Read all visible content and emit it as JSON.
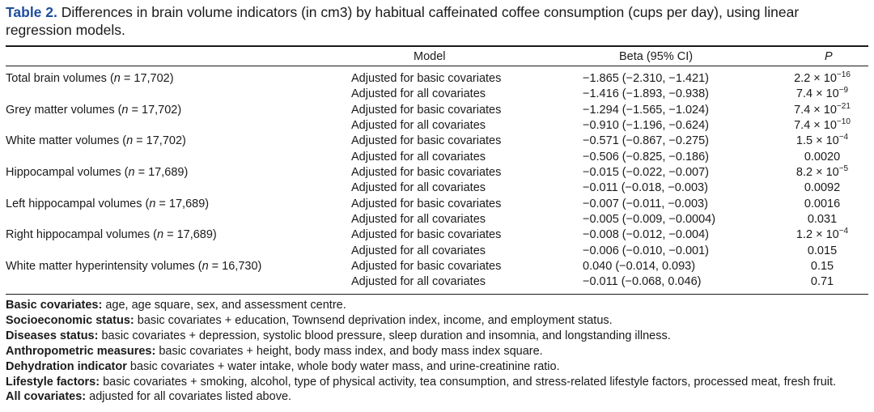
{
  "caption": {
    "label": "Table 2.",
    "text": " Differences in brain volume indicators (in cm3) by habitual caffeinated coffee consumption (cups per day), using linear regression models."
  },
  "headers": {
    "model": "Model",
    "beta": "Beta (95% CI)",
    "p": "P"
  },
  "rows": [
    {
      "outcome": "Total brain volumes (",
      "n": "n",
      "n_val": " = 17,702)",
      "model": "Adjusted for basic covariates",
      "beta": "−1.865 (−2.310, −1.421)",
      "p_base": "2.2 × 10",
      "p_exp": "−16"
    },
    {
      "outcome": "",
      "n": "",
      "n_val": "",
      "model": "Adjusted for all covariates",
      "beta": "−1.416 (−1.893, −0.938)",
      "p_base": "7.4 × 10",
      "p_exp": "−9"
    },
    {
      "outcome": "Grey matter volumes (",
      "n": "n",
      "n_val": " = 17,702)",
      "model": "Adjusted for basic covariates",
      "beta": "−1.294 (−1.565, −1.024)",
      "p_base": "7.4 × 10",
      "p_exp": "−21"
    },
    {
      "outcome": "",
      "n": "",
      "n_val": "",
      "model": "Adjusted for all covariates",
      "beta": "−0.910 (−1.196, −0.624)",
      "p_base": "7.4 × 10",
      "p_exp": "−10"
    },
    {
      "outcome": "White matter volumes (",
      "n": "n",
      "n_val": " = 17,702)",
      "model": "Adjusted for basic covariates",
      "beta": "−0.571 (−0.867, −0.275)",
      "p_base": "1.5 × 10",
      "p_exp": "−4"
    },
    {
      "outcome": "",
      "n": "",
      "n_val": "",
      "model": "Adjusted for all covariates",
      "beta": "−0.506 (−0.825, −0.186)",
      "p_base": "0.0020",
      "p_exp": ""
    },
    {
      "outcome": "Hippocampal volumes (",
      "n": "n",
      "n_val": " = 17,689)",
      "model": "Adjusted for basic covariates",
      "beta": "−0.015 (−0.022, −0.007)",
      "p_base": "8.2 × 10",
      "p_exp": "−5"
    },
    {
      "outcome": "",
      "n": "",
      "n_val": "",
      "model": "Adjusted for all covariates",
      "beta": "−0.011 (−0.018, −0.003)",
      "p_base": "0.0092",
      "p_exp": ""
    },
    {
      "outcome": "Left hippocampal volumes (",
      "n": "n",
      "n_val": " = 17,689)",
      "model": "Adjusted for basic covariates",
      "beta": "−0.007 (−0.011, −0.003)",
      "p_base": "0.0016",
      "p_exp": ""
    },
    {
      "outcome": "",
      "n": "",
      "n_val": "",
      "model": "Adjusted for all covariates",
      "beta": "−0.005 (−0.009, −0.0004)",
      "p_base": "0.031",
      "p_exp": ""
    },
    {
      "outcome": "Right hippocampal volumes (",
      "n": "n",
      "n_val": " = 17,689)",
      "model": "Adjusted for basic covariates",
      "beta": "−0.008 (−0.012, −0.004)",
      "p_base": "1.2 × 10",
      "p_exp": "−4"
    },
    {
      "outcome": "",
      "n": "",
      "n_val": "",
      "model": "Adjusted for all covariates",
      "beta": "−0.006 (−0.010, −0.001)",
      "p_base": "0.015",
      "p_exp": ""
    },
    {
      "outcome": "White matter hyperintensity volumes (",
      "n": "n",
      "n_val": " = 16,730)",
      "model": "Adjusted for basic covariates",
      "beta": "0.040 (−0.014, 0.093)",
      "p_base": "0.15",
      "p_exp": ""
    },
    {
      "outcome": "",
      "n": "",
      "n_val": "",
      "model": "Adjusted for all covariates",
      "beta": "−0.011 (−0.068, 0.046)",
      "p_base": "0.71",
      "p_exp": ""
    }
  ],
  "notes": [
    {
      "label": "Basic covariates:",
      "text": " age, age square, sex, and assessment centre."
    },
    {
      "label": "Socioeconomic status:",
      "text": " basic covariates + education, Townsend deprivation index, income, and employment status."
    },
    {
      "label": "Diseases status:",
      "text": " basic covariates + depression, systolic blood pressure, sleep duration and insomnia, and longstanding illness."
    },
    {
      "label": "Anthropometric measures:",
      "text": " basic covariates + height, body mass index, and body mass index square."
    },
    {
      "label": "Dehydration indicator",
      "text": " basic covariates + water intake, whole body water mass, and urine-creatinine ratio."
    },
    {
      "label": "Lifestyle factors:",
      "text": " basic covariates + smoking, alcohol, type of physical activity, tea consumption, and stress-related lifestyle factors, processed meat, fresh fruit."
    },
    {
      "label": "All covariates:",
      "text": " adjusted for all covariates listed above."
    }
  ]
}
